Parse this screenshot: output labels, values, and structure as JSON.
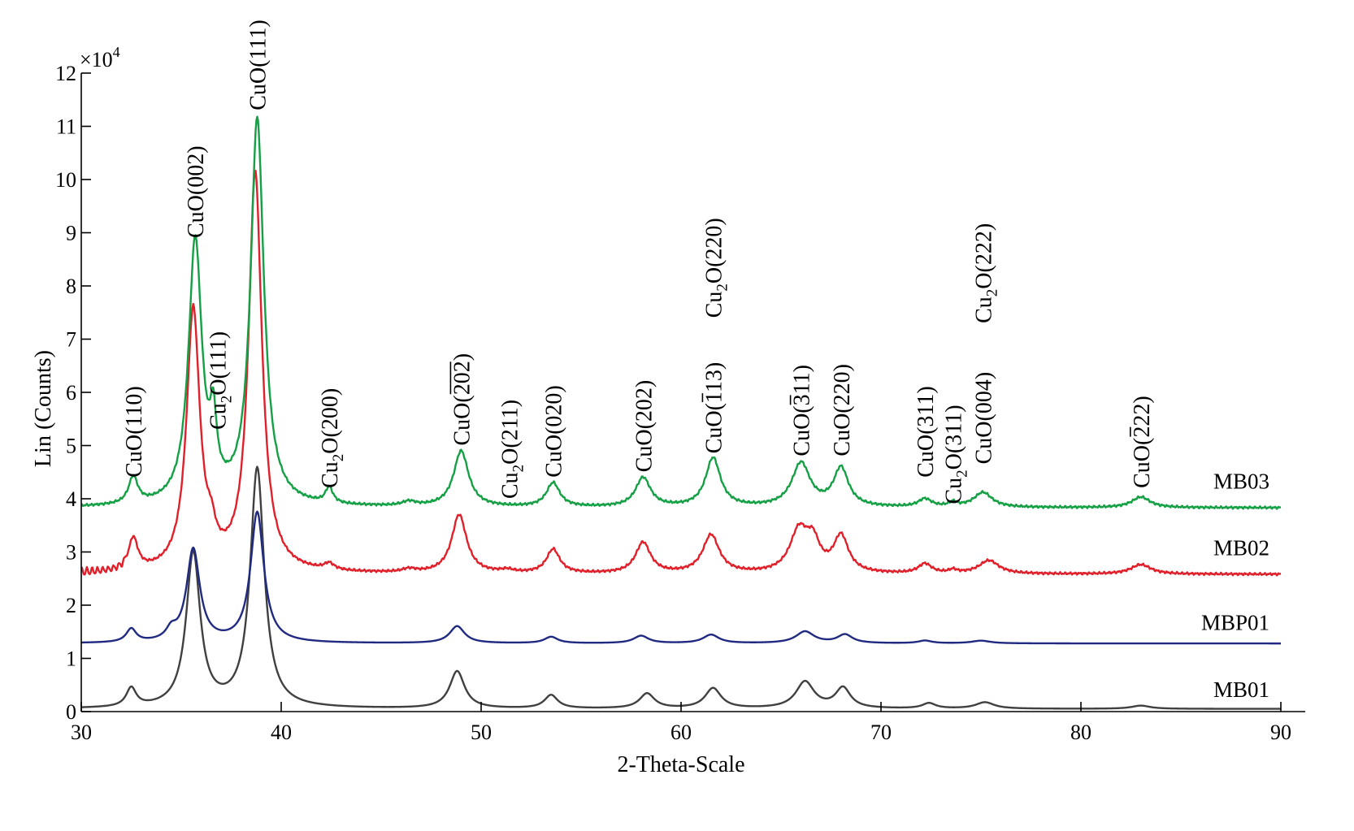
{
  "chart_data": {
    "type": "line",
    "xlabel": "2-Theta-Scale",
    "ylabel": "Lin (Counts)",
    "y_multiplier": "×10",
    "y_multiplier_exp": "4",
    "xlim": [
      30,
      90
    ],
    "ylim": [
      0,
      12
    ],
    "xticks": [
      30,
      40,
      50,
      60,
      70,
      80,
      90
    ],
    "yticks": [
      0,
      1,
      2,
      3,
      4,
      5,
      6,
      7,
      8,
      9,
      10,
      11,
      12
    ],
    "grid": false,
    "series": [
      {
        "name": "MB01",
        "color": "#404040",
        "baseline": 0.05,
        "peaks": [
          {
            "x": 32.5,
            "h": 0.35,
            "w": 0.3
          },
          {
            "x": 35.6,
            "h": 2.9,
            "w": 0.42
          },
          {
            "x": 38.8,
            "h": 4.5,
            "w": 0.42
          },
          {
            "x": 48.8,
            "h": 0.7,
            "w": 0.45
          },
          {
            "x": 53.5,
            "h": 0.25,
            "w": 0.4
          },
          {
            "x": 58.3,
            "h": 0.28,
            "w": 0.45
          },
          {
            "x": 61.6,
            "h": 0.38,
            "w": 0.48
          },
          {
            "x": 66.2,
            "h": 0.5,
            "w": 0.55
          },
          {
            "x": 68.1,
            "h": 0.38,
            "w": 0.45
          },
          {
            "x": 72.4,
            "h": 0.1,
            "w": 0.4
          },
          {
            "x": 75.2,
            "h": 0.12,
            "w": 0.55
          },
          {
            "x": 83.0,
            "h": 0.06,
            "w": 0.55
          }
        ]
      },
      {
        "name": "MBP01",
        "color": "#1f2a80",
        "baseline": 1.28,
        "peaks": [
          {
            "x": 32.5,
            "h": 0.25,
            "w": 0.3
          },
          {
            "x": 34.5,
            "h": 0.18,
            "w": 0.3
          },
          {
            "x": 35.6,
            "h": 1.75,
            "w": 0.4
          },
          {
            "x": 38.8,
            "h": 2.45,
            "w": 0.4
          },
          {
            "x": 48.8,
            "h": 0.32,
            "w": 0.45
          },
          {
            "x": 53.5,
            "h": 0.12,
            "w": 0.4
          },
          {
            "x": 58.0,
            "h": 0.14,
            "w": 0.45
          },
          {
            "x": 61.5,
            "h": 0.16,
            "w": 0.48
          },
          {
            "x": 66.2,
            "h": 0.22,
            "w": 0.55
          },
          {
            "x": 68.2,
            "h": 0.16,
            "w": 0.45
          },
          {
            "x": 72.2,
            "h": 0.05,
            "w": 0.4
          },
          {
            "x": 75.0,
            "h": 0.05,
            "w": 0.55
          }
        ]
      },
      {
        "name": "MB02",
        "color": "#e0202a",
        "baseline": 2.58,
        "peaks": [
          {
            "x": 32.6,
            "h": 0.6,
            "w": 0.28
          },
          {
            "x": 35.6,
            "h": 4.9,
            "w": 0.4
          },
          {
            "x": 36.5,
            "h": 0.4,
            "w": 0.25
          },
          {
            "x": 38.7,
            "h": 7.5,
            "w": 0.4
          },
          {
            "x": 42.4,
            "h": 0.12,
            "w": 0.3
          },
          {
            "x": 46.4,
            "h": 0.06,
            "w": 0.4
          },
          {
            "x": 48.9,
            "h": 1.1,
            "w": 0.45
          },
          {
            "x": 51.3,
            "h": 0.05,
            "w": 0.4
          },
          {
            "x": 53.6,
            "h": 0.45,
            "w": 0.4
          },
          {
            "x": 58.1,
            "h": 0.58,
            "w": 0.45
          },
          {
            "x": 61.5,
            "h": 0.72,
            "w": 0.5
          },
          {
            "x": 65.9,
            "h": 0.78,
            "w": 0.55
          },
          {
            "x": 66.6,
            "h": 0.5,
            "w": 0.4
          },
          {
            "x": 68.0,
            "h": 0.68,
            "w": 0.45
          },
          {
            "x": 72.2,
            "h": 0.18,
            "w": 0.4
          },
          {
            "x": 73.6,
            "h": 0.06,
            "w": 0.25
          },
          {
            "x": 75.4,
            "h": 0.25,
            "w": 0.6
          },
          {
            "x": 83.0,
            "h": 0.18,
            "w": 0.6
          }
        ]
      },
      {
        "name": "MB03",
        "color": "#15a045",
        "baseline": 3.83,
        "peaks": [
          {
            "x": 32.6,
            "h": 0.5,
            "w": 0.28
          },
          {
            "x": 35.7,
            "h": 4.95,
            "w": 0.4
          },
          {
            "x": 36.6,
            "h": 1.2,
            "w": 0.2
          },
          {
            "x": 38.8,
            "h": 7.25,
            "w": 0.4
          },
          {
            "x": 42.4,
            "h": 0.3,
            "w": 0.22
          },
          {
            "x": 46.4,
            "h": 0.08,
            "w": 0.4
          },
          {
            "x": 49.0,
            "h": 1.05,
            "w": 0.45
          },
          {
            "x": 53.6,
            "h": 0.45,
            "w": 0.4
          },
          {
            "x": 58.1,
            "h": 0.55,
            "w": 0.45
          },
          {
            "x": 61.6,
            "h": 0.92,
            "w": 0.45
          },
          {
            "x": 66.0,
            "h": 0.82,
            "w": 0.55
          },
          {
            "x": 68.0,
            "h": 0.72,
            "w": 0.45
          },
          {
            "x": 72.2,
            "h": 0.15,
            "w": 0.4
          },
          {
            "x": 73.6,
            "h": 0.08,
            "w": 0.25
          },
          {
            "x": 75.1,
            "h": 0.28,
            "w": 0.55
          },
          {
            "x": 83.0,
            "h": 0.2,
            "w": 0.55
          }
        ]
      }
    ],
    "peak_annotations": [
      {
        "main": "CuO(110)",
        "x": 32.6,
        "y": 4.4
      },
      {
        "main": "CuO(002)",
        "x": 35.7,
        "y": 8.9
      },
      {
        "pre": "Cu",
        "sub": "2",
        "post": "O(111)",
        "x": 36.8,
        "y": 5.3
      },
      {
        "main": "CuO(111)",
        "x": 38.8,
        "y": 11.3
      },
      {
        "pre": "Cu",
        "sub": "2",
        "post": "O(200)",
        "x": 42.4,
        "y": 4.2
      },
      {
        "pre": "CuO(",
        "over": "202",
        "post": ")",
        "x": 49.0,
        "y": 5.0
      },
      {
        "pre": "Cu",
        "sub": "2",
        "post": "O(211)",
        "x": 51.4,
        "y": 4.0
      },
      {
        "main": "CuO(020)",
        "x": 53.6,
        "y": 4.4
      },
      {
        "main": "CuO(202)",
        "x": 58.1,
        "y": 4.5
      },
      {
        "pre": "Cu",
        "sub": "2",
        "post": "O(220)",
        "x": 61.6,
        "y": 7.4
      },
      {
        "pre": "CuO(",
        "over": "1",
        "mid": "13)",
        "x": 61.6,
        "y": 4.85
      },
      {
        "pre": "CuO(",
        "over": "3",
        "mid": "11)",
        "x": 66.0,
        "y": 4.8
      },
      {
        "main": "CuO(220)",
        "x": 68.0,
        "y": 4.8
      },
      {
        "main": "CuO(311)",
        "x": 72.2,
        "y": 4.4
      },
      {
        "pre": "Cu",
        "sub": "2",
        "post": "O(311)",
        "x": 73.6,
        "y": 3.9
      },
      {
        "main": "CuO(004)",
        "x": 75.1,
        "y": 4.65
      },
      {
        "pre": "Cu",
        "sub": "2",
        "post": "O(222)",
        "x": 75.1,
        "y": 7.3
      },
      {
        "pre": "CuO(",
        "over": "2",
        "mid": "22)",
        "x": 83.0,
        "y": 4.2
      }
    ]
  }
}
